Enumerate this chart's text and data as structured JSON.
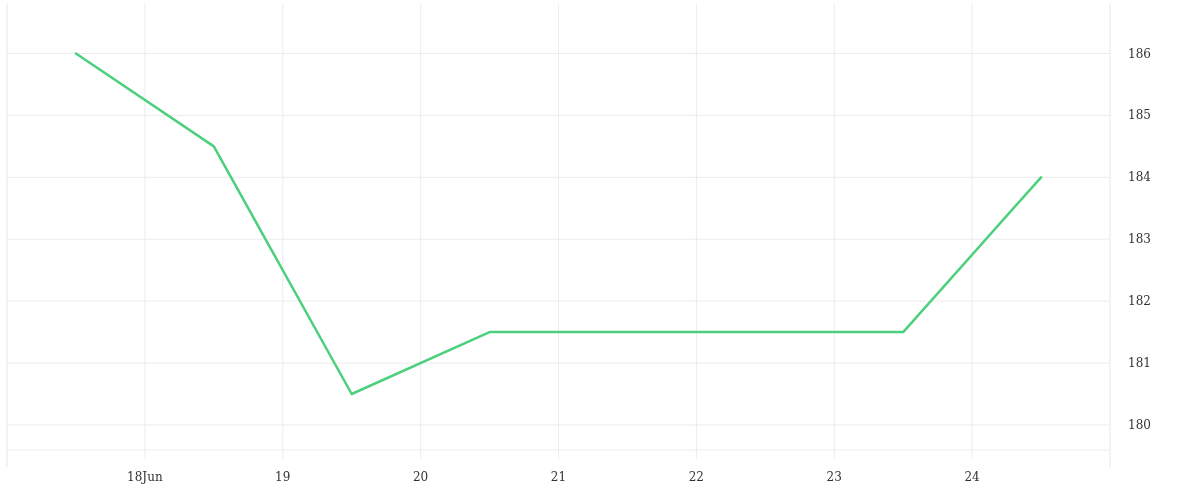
{
  "chart_data": {
    "type": "line",
    "x": [
      17.5,
      18.5,
      19.5,
      20.5,
      21.5,
      22.5,
      23.5,
      24.5
    ],
    "series": [
      {
        "color": "#4cd07d",
        "values": [
          186,
          184.5,
          180.5,
          181.5,
          181.5,
          181.5,
          181.5,
          184
        ]
      }
    ],
    "xlim": [
      17,
      25
    ],
    "xticks": [
      {
        "value": 18,
        "label": "18Jun"
      },
      19,
      20,
      21,
      22,
      23,
      24
    ],
    "ylim": [
      179.45,
      186.8
    ],
    "yticks": [
      180,
      181,
      182,
      183,
      184,
      185,
      186
    ],
    "grid": true,
    "line_style": "solid"
  }
}
